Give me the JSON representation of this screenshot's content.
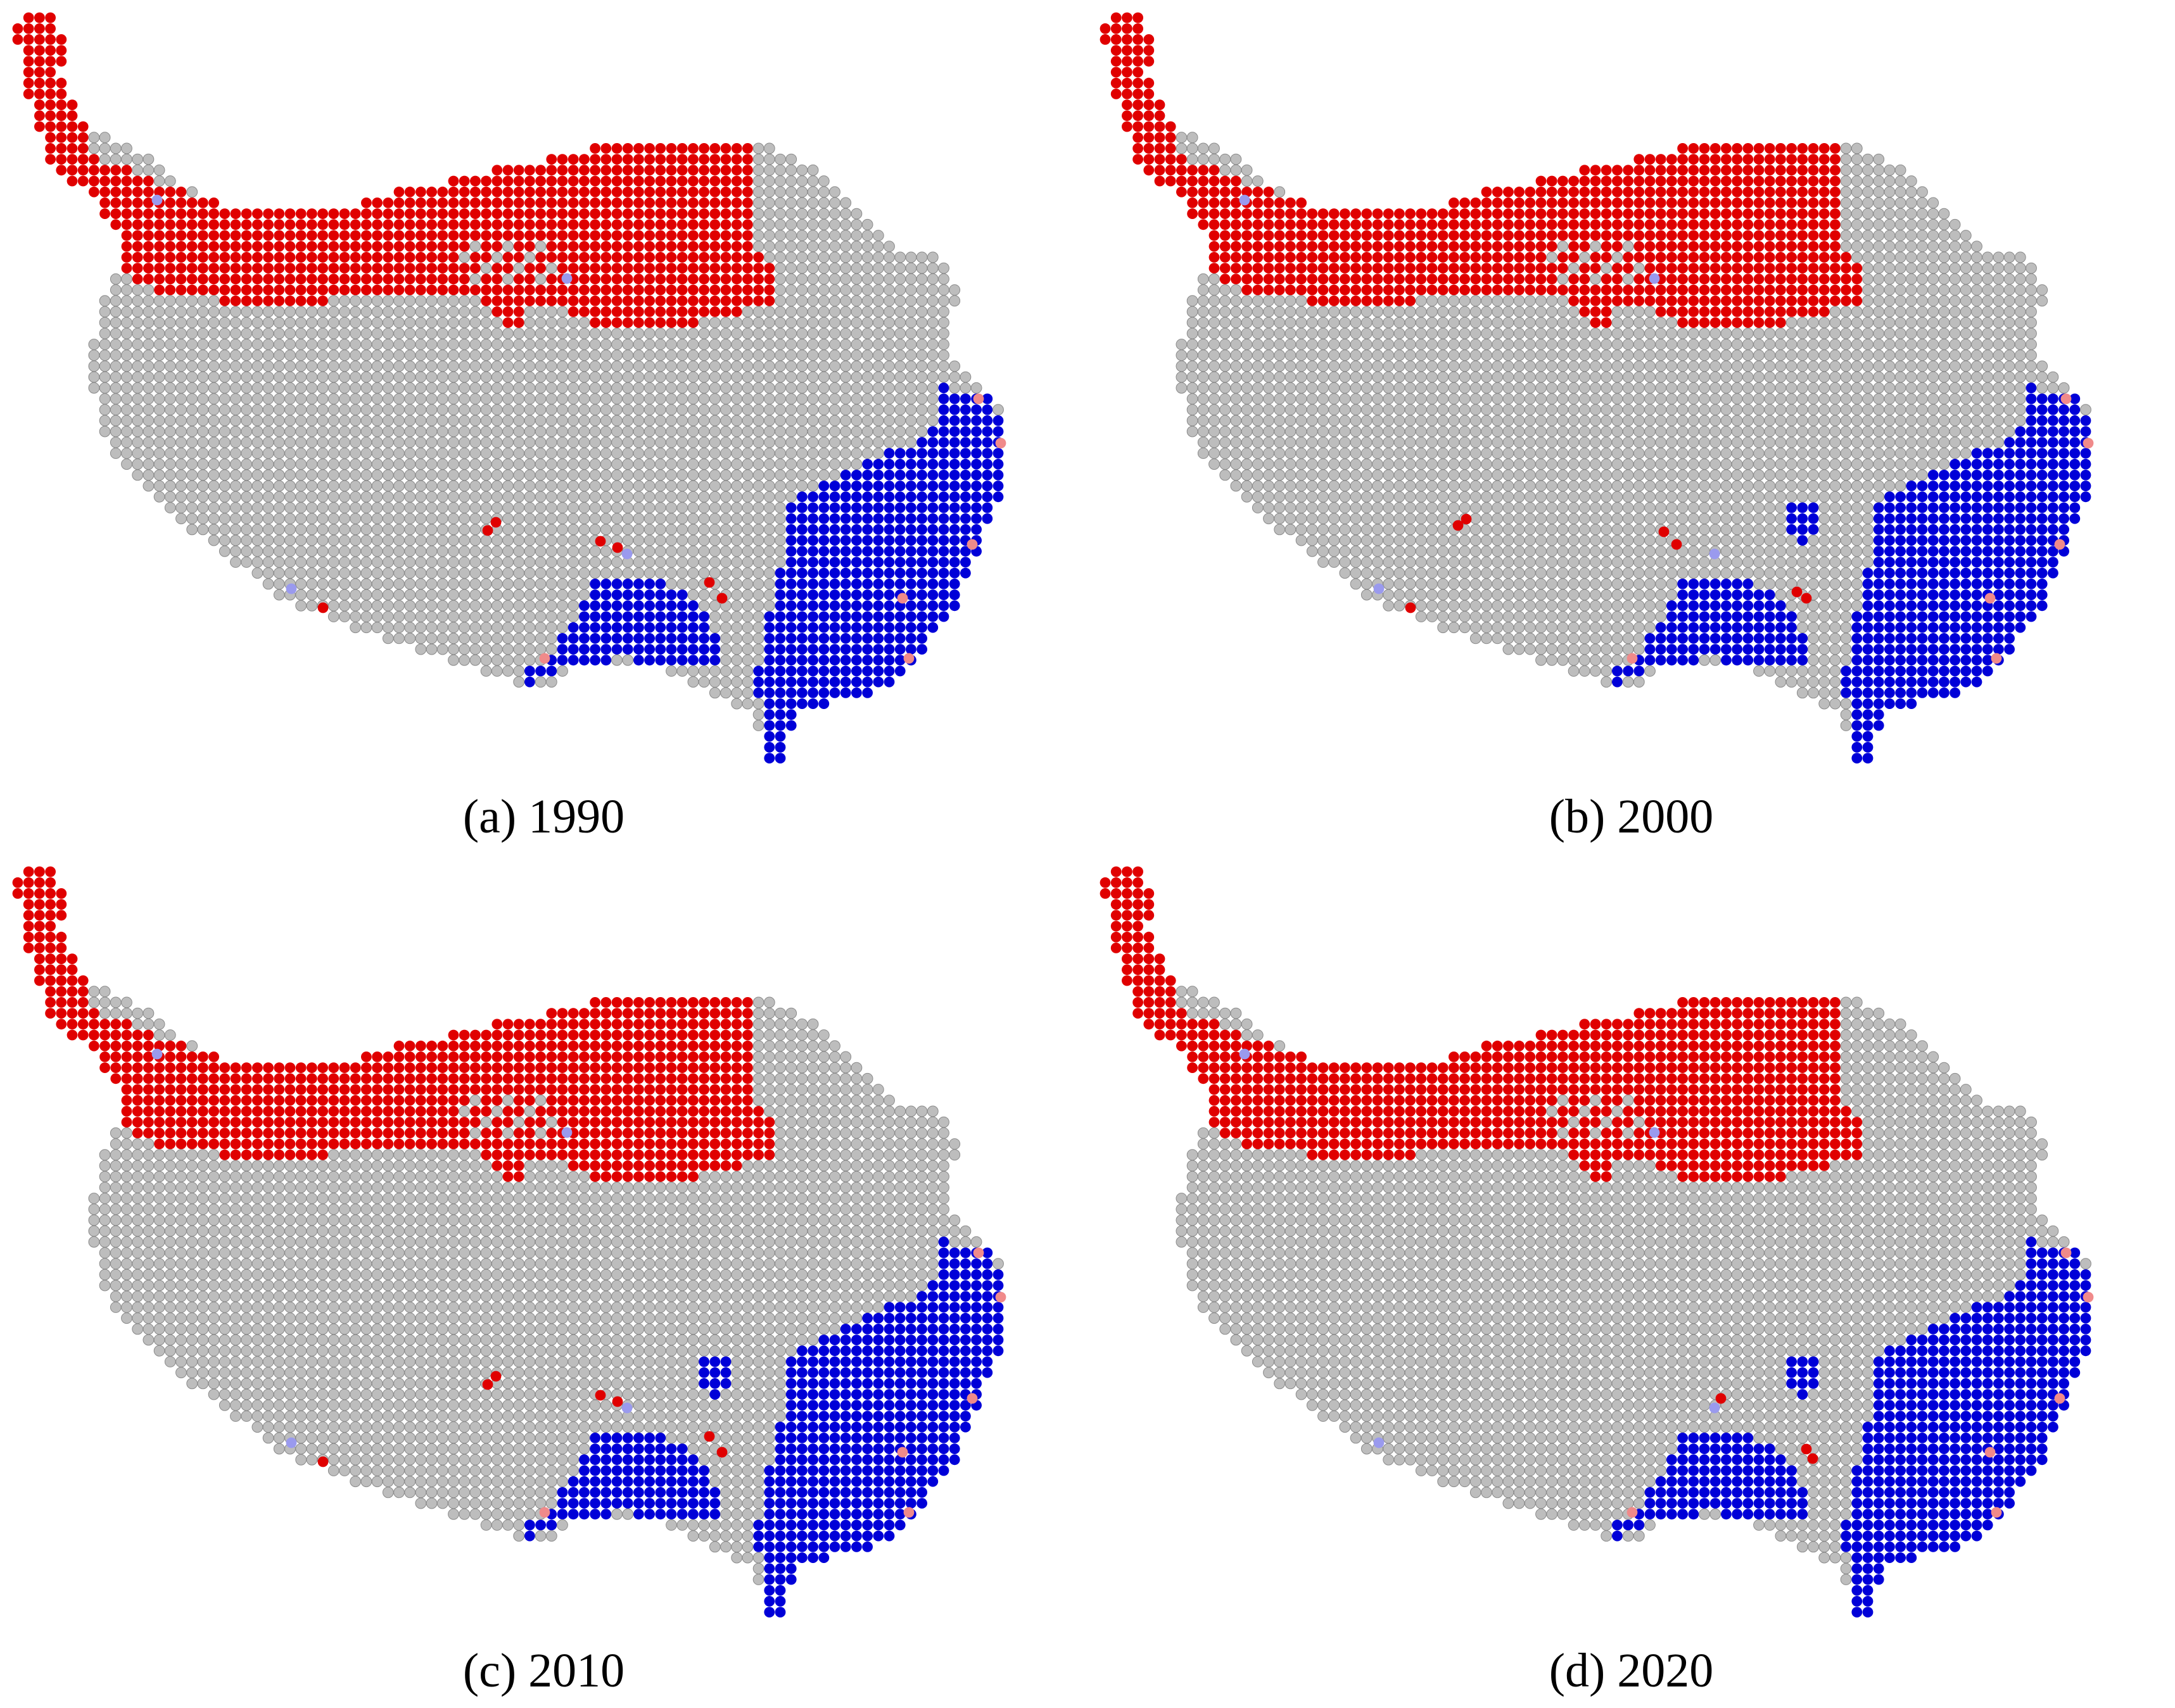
{
  "colors": {
    "background": "#bdbdbd",
    "hot": "#e00000",
    "cold": "#0000d8",
    "hot_light": "#f08a8a",
    "cold_light": "#9a9aee",
    "cell_outline": "#8a8a8a"
  },
  "panels": [
    {
      "id": "a",
      "caption": "(a) 1990",
      "year": 1990
    },
    {
      "id": "b",
      "caption": "(b) 2000",
      "year": 2000
    },
    {
      "id": "c",
      "caption": "(c) 2010",
      "year": 2010
    },
    {
      "id": "d",
      "caption": "(d) 2020",
      "year": 2020
    }
  ]
}
